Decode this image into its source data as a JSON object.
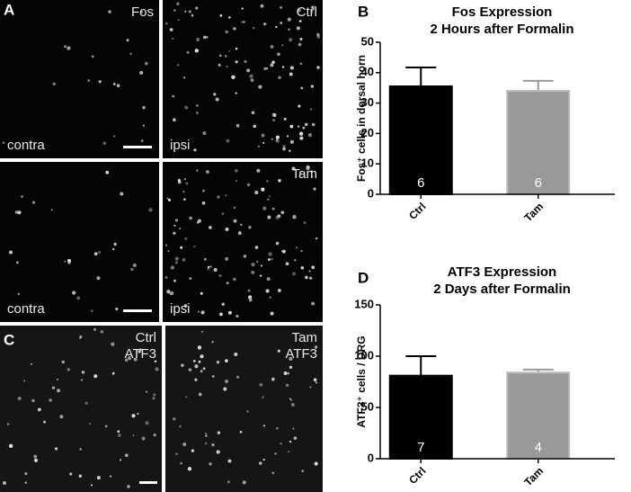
{
  "panels": {
    "letters": [
      "A",
      "B",
      "C",
      "D"
    ],
    "images": [
      {
        "top": "Fos",
        "bottom": "contra"
      },
      {
        "top": "Ctrl",
        "bottom": "ipsi"
      },
      {
        "top": "",
        "bottom": "contra"
      },
      {
        "top": "Tam",
        "bottom": "ipsi"
      },
      {
        "top": "Ctrl",
        "top2": "ATF3"
      },
      {
        "top": "Tam",
        "top2": "ATF3"
      }
    ]
  },
  "chart_data": [
    {
      "type": "bar",
      "title": "Fos Expression",
      "subtitle": "2 Hours after Formalin",
      "y_label": "Fos⁺ cells in dorsal horn",
      "categories": [
        "Ctrl",
        "Tam"
      ],
      "values": [
        35.5,
        34
      ],
      "errors": [
        6.2,
        3.3
      ],
      "n": [
        6,
        6
      ],
      "colors": [
        "#000000",
        "#999999"
      ],
      "ylim": [
        0,
        50
      ],
      "yticks": [
        0,
        10,
        20,
        30,
        40,
        50
      ]
    },
    {
      "type": "bar",
      "title": "ATF3 Expression",
      "subtitle": "2 Days after Formalin",
      "y_label": "ATF3⁺ cells / DRG",
      "categories": [
        "Ctrl",
        "Tam"
      ],
      "values": [
        81,
        84
      ],
      "errors": [
        19,
        3
      ],
      "n": [
        7,
        4
      ],
      "colors": [
        "#000000",
        "#999999"
      ],
      "ylim": [
        0,
        150
      ],
      "yticks": [
        0,
        50,
        100,
        150
      ]
    }
  ]
}
